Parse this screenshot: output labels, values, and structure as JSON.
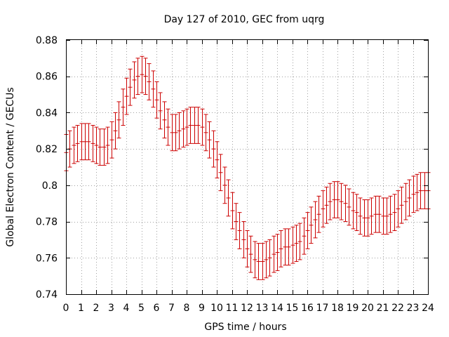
{
  "chart_data": {
    "type": "scatter",
    "title": "Day 127 of 2010, GEC from uqrg",
    "xlabel": "GPS time / hours",
    "ylabel": "Global Electron Content / GECUs",
    "xlim": [
      0,
      24
    ],
    "ylim": [
      0.74,
      0.88
    ],
    "xticks": [
      0,
      1,
      2,
      3,
      4,
      5,
      6,
      7,
      8,
      9,
      10,
      11,
      12,
      13,
      14,
      15,
      16,
      17,
      18,
      19,
      20,
      21,
      22,
      23,
      24
    ],
    "xtick_labels": [
      "0",
      "1",
      "2",
      "3",
      "4",
      "5",
      "6",
      "7",
      "8",
      "9",
      "10",
      "11",
      "12",
      "13",
      "14",
      "15",
      "16",
      "17",
      "18",
      "19",
      "20",
      "21",
      "22",
      "23",
      "24"
    ],
    "yticks": [
      0.74,
      0.76,
      0.78,
      0.8,
      0.82,
      0.84,
      0.86,
      0.88
    ],
    "ytick_labels": [
      "0.74",
      "0.76",
      "0.78",
      "0.8",
      "0.82",
      "0.84",
      "0.86",
      "0.88"
    ],
    "grid": true,
    "color": "#cc0000",
    "error": 0.01,
    "x": [
      0,
      0.25,
      0.5,
      0.75,
      1,
      1.25,
      1.5,
      1.75,
      2,
      2.25,
      2.5,
      2.75,
      3,
      3.25,
      3.5,
      3.75,
      4,
      4.25,
      4.5,
      4.75,
      5,
      5.25,
      5.5,
      5.75,
      6,
      6.25,
      6.5,
      6.75,
      7,
      7.25,
      7.5,
      7.75,
      8,
      8.25,
      8.5,
      8.75,
      9,
      9.25,
      9.5,
      9.75,
      10,
      10.25,
      10.5,
      10.75,
      11,
      11.25,
      11.5,
      11.75,
      12,
      12.25,
      12.5,
      12.75,
      13,
      13.25,
      13.5,
      13.75,
      14,
      14.25,
      14.5,
      14.75,
      15,
      15.25,
      15.5,
      15.75,
      16,
      16.25,
      16.5,
      16.75,
      17,
      17.25,
      17.5,
      17.75,
      18,
      18.25,
      18.5,
      18.75,
      19,
      19.25,
      19.5,
      19.75,
      20,
      20.25,
      20.5,
      20.75,
      21,
      21.25,
      21.5,
      21.75,
      22,
      22.25,
      22.5,
      22.75,
      23,
      23.25,
      23.5,
      23.75,
      24
    ],
    "y": [
      0.818,
      0.82,
      0.822,
      0.823,
      0.824,
      0.824,
      0.824,
      0.823,
      0.822,
      0.821,
      0.821,
      0.822,
      0.825,
      0.83,
      0.836,
      0.843,
      0.849,
      0.854,
      0.858,
      0.86,
      0.861,
      0.86,
      0.857,
      0.853,
      0.847,
      0.841,
      0.836,
      0.832,
      0.829,
      0.829,
      0.83,
      0.831,
      0.832,
      0.833,
      0.833,
      0.833,
      0.832,
      0.829,
      0.825,
      0.82,
      0.814,
      0.807,
      0.8,
      0.793,
      0.786,
      0.78,
      0.775,
      0.77,
      0.765,
      0.762,
      0.759,
      0.758,
      0.758,
      0.759,
      0.76,
      0.762,
      0.763,
      0.765,
      0.766,
      0.766,
      0.767,
      0.768,
      0.769,
      0.772,
      0.775,
      0.778,
      0.781,
      0.784,
      0.787,
      0.789,
      0.791,
      0.792,
      0.792,
      0.791,
      0.79,
      0.788,
      0.786,
      0.785,
      0.783,
      0.782,
      0.782,
      0.783,
      0.784,
      0.784,
      0.783,
      0.783,
      0.784,
      0.785,
      0.787,
      0.789,
      0.791,
      0.793,
      0.795,
      0.796,
      0.797,
      0.797,
      0.797
    ]
  }
}
